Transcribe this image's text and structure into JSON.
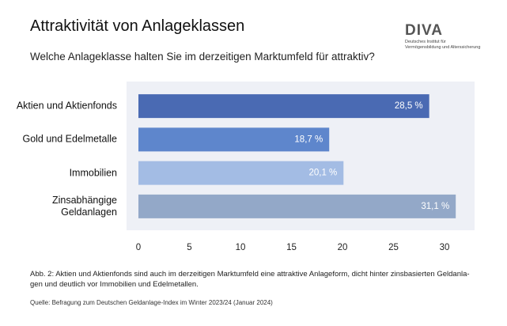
{
  "logo": {
    "name": "DIVA",
    "subtitle": "Deutsches Institut für\nVermögensbildung und Alterssicherung"
  },
  "chart_data": {
    "type": "bar",
    "orientation": "horizontal",
    "title": "Attraktivität von Anlageklassen",
    "subtitle": "Welche Anlageklasse halten Sie im derzeitigen Marktumfeld für attraktiv?",
    "categories": [
      "Aktien und Aktienfonds",
      "Gold und Edelmetalle",
      "Immobilien",
      "Zinsabhängige\nGeldanlagen"
    ],
    "values": [
      28.5,
      18.7,
      20.1,
      31.1
    ],
    "value_labels": [
      "28,5 %",
      "18,7 %",
      "20,1 %",
      "31,1 %"
    ],
    "colors": [
      "#4a6ab3",
      "#5e86cc",
      "#a3bce4",
      "#93a8c8"
    ],
    "xlim": [
      0,
      30
    ],
    "xticks": [
      0,
      5,
      10,
      15,
      20,
      25,
      30
    ]
  },
  "caption": "Abb. 2: Aktien und Aktienfonds sind auch im derzeitigen Marktumfeld eine attraktive Anlageform, dicht hinter zinsbasierten Geldanla-\ngen und deutlich vor Immobilien und Edelmetallen.",
  "source": "Quelle: Befragung zum Deutschen Geldanlage-Index im Winter 2023/24 (Januar 2024)"
}
